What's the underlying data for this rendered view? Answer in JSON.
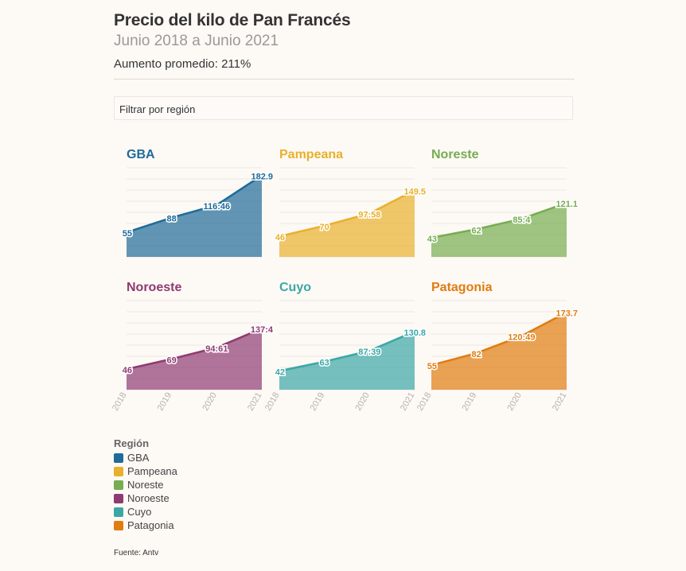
{
  "header": {
    "title": "Precio del kilo de Pan Francés",
    "subtitle": "Junio 2018 a Junio 2021",
    "summary": "Aumento promedio: 211%"
  },
  "filter": {
    "label": "Filtrar por región"
  },
  "legend": {
    "title": "Región",
    "items": [
      {
        "label": "GBA",
        "color": "#1f6b99"
      },
      {
        "label": "Pampeana",
        "color": "#e8b02c"
      },
      {
        "label": "Noreste",
        "color": "#76ad4f"
      },
      {
        "label": "Noroeste",
        "color": "#8e3b72"
      },
      {
        "label": "Cuyo",
        "color": "#3aa7a6"
      },
      {
        "label": "Patagonia",
        "color": "#e07c10"
      }
    ]
  },
  "source": "Fuente: Antv",
  "chart_data": {
    "type": "area",
    "x": [
      "2018",
      "2019",
      "2020",
      "2021"
    ],
    "ylim": [
      0,
      200
    ],
    "grid": true,
    "series": [
      {
        "name": "GBA",
        "color": "#1f6b99",
        "values": [
          55,
          88,
          116.46,
          182.9
        ],
        "labels": [
          "55",
          "88",
          "116:46",
          "182.9"
        ]
      },
      {
        "name": "Pampeana",
        "color": "#e8b02c",
        "values": [
          46,
          70,
          97.58,
          149.5
        ],
        "labels": [
          "46",
          "70",
          "97:58",
          "149.5"
        ]
      },
      {
        "name": "Noreste",
        "color": "#76ad4f",
        "values": [
          43,
          62,
          85.4,
          121.1
        ],
        "labels": [
          "43",
          "62",
          "85:4",
          "121.1"
        ]
      },
      {
        "name": "Noroeste",
        "color": "#8e3b72",
        "values": [
          46,
          69,
          94.61,
          137.4
        ],
        "labels": [
          "46",
          "69",
          "94:61",
          "137:4"
        ]
      },
      {
        "name": "Cuyo",
        "color": "#3aa7a6",
        "values": [
          42,
          63,
          87.39,
          130.8
        ],
        "labels": [
          "42",
          "63",
          "87:39",
          "130.8"
        ]
      },
      {
        "name": "Patagonia",
        "color": "#e07c10",
        "values": [
          55,
          82,
          120.49,
          173.7
        ],
        "labels": [
          "55",
          "82",
          "120:49",
          "173.7"
        ]
      }
    ]
  }
}
